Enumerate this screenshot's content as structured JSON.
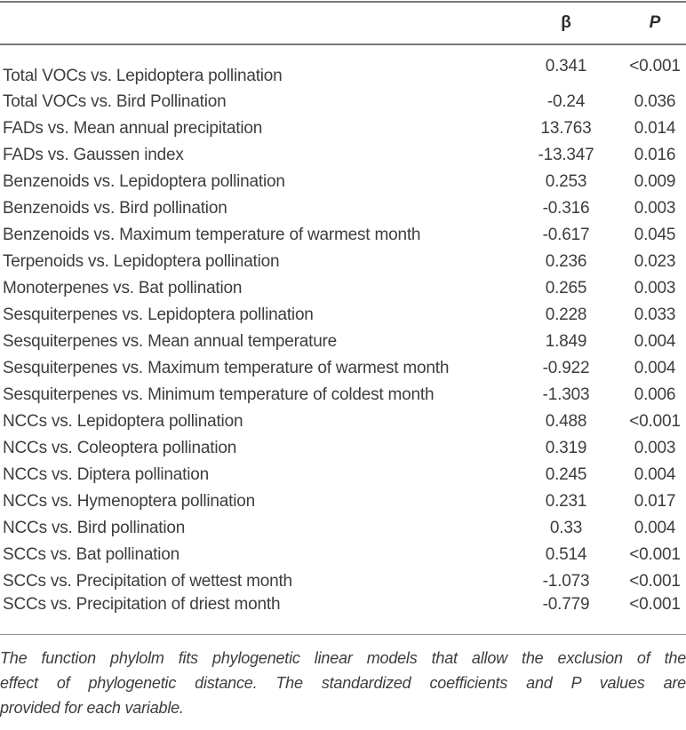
{
  "table": {
    "header": {
      "variable": "",
      "beta": "β",
      "p": "P"
    },
    "rows": [
      {
        "label": "Total VOCs vs. Lepidoptera pollination",
        "beta": "0.341",
        "p": "<0.001"
      },
      {
        "label": "Total VOCs vs. Bird Pollination",
        "beta": "-0.24",
        "p": "0.036"
      },
      {
        "label": "FADs vs. Mean annual precipitation",
        "beta": "13.763",
        "p": "0.014"
      },
      {
        "label": "FADs vs. Gaussen index",
        "beta": "-13.347",
        "p": "0.016"
      },
      {
        "label": "Benzenoids vs. Lepidoptera pollination",
        "beta": "0.253",
        "p": "0.009"
      },
      {
        "label": "Benzenoids vs. Bird pollination",
        "beta": "-0.316",
        "p": "0.003"
      },
      {
        "label": "Benzenoids vs. Maximum temperature of warmest month",
        "beta": "-0.617",
        "p": "0.045"
      },
      {
        "label": "Terpenoids vs. Lepidoptera pollination",
        "beta": "0.236",
        "p": "0.023"
      },
      {
        "label": "Monoterpenes vs. Bat pollination",
        "beta": "0.265",
        "p": "0.003"
      },
      {
        "label": "Sesquiterpenes vs. Lepidoptera pollination",
        "beta": "0.228",
        "p": "0.033"
      },
      {
        "label": "Sesquiterpenes vs. Mean annual temperature",
        "beta": "1.849",
        "p": "0.004"
      },
      {
        "label": "Sesquiterpenes vs. Maximum temperature of warmest month",
        "beta": "-0.922",
        "p": "0.004"
      },
      {
        "label": "Sesquiterpenes vs. Minimum temperature of coldest month",
        "beta": "-1.303",
        "p": "0.006"
      },
      {
        "label": "NCCs vs. Lepidoptera pollination",
        "beta": "0.488",
        "p": "<0.001"
      },
      {
        "label": "NCCs vs. Coleoptera pollination",
        "beta": "0.319",
        "p": "0.003"
      },
      {
        "label": "NCCs vs. Diptera pollination",
        "beta": "0.245",
        "p": "0.004"
      },
      {
        "label": "NCCs vs. Hymenoptera pollination",
        "beta": "0.231",
        "p": "0.017"
      },
      {
        "label": "NCCs vs. Bird pollination",
        "beta": "0.33",
        "p": "0.004"
      },
      {
        "label": "SCCs vs. Bat pollination",
        "beta": "0.514",
        "p": "<0.001"
      },
      {
        "label": "SCCs vs. Precipitation of wettest month",
        "beta": "-1.073",
        "p": "<0.001"
      },
      {
        "label": "SCCs vs. Precipitation of driest month",
        "beta": "-0.779",
        "p": "<0.001"
      }
    ],
    "footnote_lines": [
      "The function phylolm fits phylogenetic linear models that allow the exclusion of the",
      "effect of phylogenetic distance. The standardized coefficients and P values are",
      "provided for each variable."
    ]
  },
  "colors": {
    "text": "#3d3d3d",
    "header_text": "#2b2b2b",
    "rule_dark": "#77787b",
    "rule_light": "#8d8e90",
    "background": "#ffffff"
  }
}
